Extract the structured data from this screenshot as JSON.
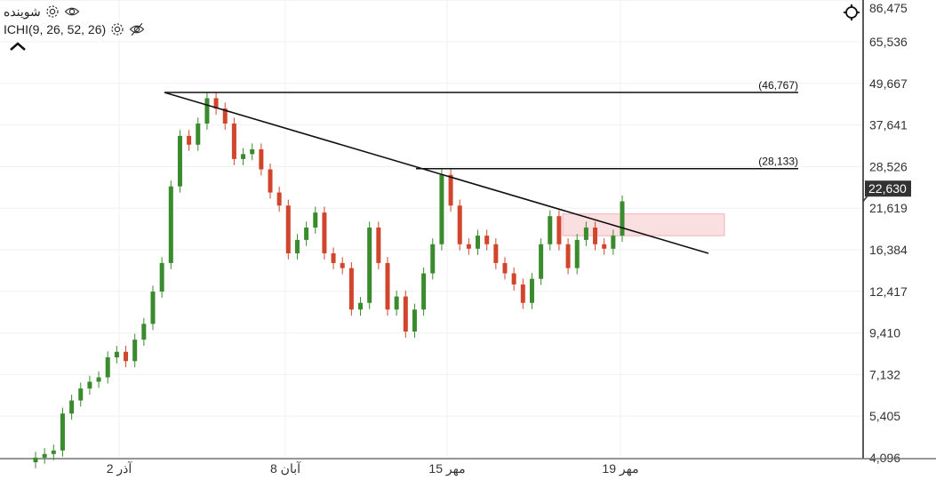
{
  "legend": {
    "series_name": "شوینده",
    "indicator": "ICHI(9, 26, 52, 26)"
  },
  "icons": [
    "settings-gear-icon",
    "eye-icon",
    "eye-off-icon",
    "chevron-up-icon",
    "crosshair-icon"
  ],
  "colors": {
    "up": "#3a8a2e",
    "down": "#d0452b",
    "line": "#111111",
    "zone": "#f7c9cc",
    "price_tag": "#333333"
  },
  "chart_data": {
    "type": "candlestick",
    "y_scale": "log",
    "ylim": [
      4096,
      86475
    ],
    "y_ticks": [
      "86,475",
      "65,536",
      "49,667",
      "37,641",
      "28,526",
      "21,619",
      "16,384",
      "12,417",
      "9,410",
      "7,132",
      "5,405",
      "4,096"
    ],
    "y_tick_values": [
      86475,
      65536,
      49667,
      37641,
      28526,
      21619,
      16384,
      12417,
      9410,
      7132,
      5405,
      4096
    ],
    "x_ticks": [
      "2 آذر",
      "8 آبان",
      "15 مهر",
      "19 مهر"
    ],
    "last_price": "22,630",
    "last_price_value": 22630,
    "closes": [
      4100,
      4200,
      4300,
      5500,
      6000,
      6500,
      6800,
      7000,
      8000,
      8300,
      7800,
      9000,
      10000,
      12400,
      15000,
      25000,
      35000,
      33000,
      38000,
      45000,
      42000,
      38000,
      30000,
      31000,
      32000,
      28000,
      24000,
      22000,
      16000,
      17500,
      19000,
      21000,
      16000,
      15000,
      14500,
      11000,
      11500,
      19000,
      15000,
      11000,
      12000,
      9500,
      11000,
      14000,
      17000,
      27000,
      22000,
      17000,
      16500,
      18000,
      17000,
      15000,
      14000,
      13000,
      11500,
      13500,
      17000,
      20500,
      17000,
      14500,
      17500,
      19000,
      17000,
      16500,
      18000,
      22630
    ],
    "levels": [
      {
        "label": "(46,767)",
        "value": 46767
      },
      {
        "label": "(28,133)",
        "value": 28133
      }
    ],
    "trendline": {
      "from": 46767,
      "to": 16000
    },
    "zone": {
      "high": 20800,
      "low": 18000
    }
  }
}
